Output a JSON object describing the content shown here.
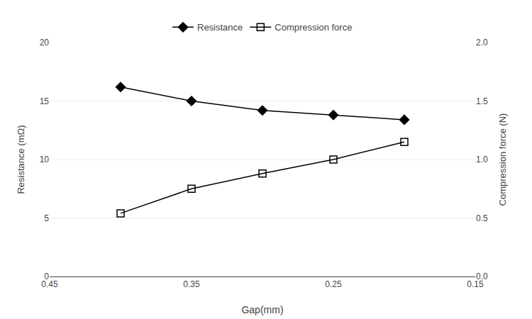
{
  "chart_data": {
    "type": "line",
    "x_label": "Gap(mm)",
    "y_label": "Resistance (mΩ)",
    "y2_label": "Compression force (N)",
    "x": [
      0.4,
      0.35,
      0.3,
      0.25,
      0.2
    ],
    "series": [
      {
        "name": "Resistance",
        "color": "#000000",
        "marker": "diamond",
        "values": [
          16.2,
          15.0,
          14.2,
          13.8,
          13.4
        ]
      },
      {
        "name": "Compression force",
        "color": "#000000",
        "marker": "square-open",
        "axis": "y2",
        "values": [
          0.54,
          0.75,
          0.88,
          1.0,
          1.15
        ]
      }
    ],
    "xlim": [
      0.45,
      0.15
    ],
    "xticks": [
      0.45,
      0.35,
      0.25,
      0.15
    ],
    "ylim": [
      0,
      20
    ],
    "yticks": [
      0,
      5,
      10,
      15,
      20
    ],
    "y2lim": [
      0.0,
      2.0
    ],
    "y2ticks": [
      {
        "value": 0.0,
        "label": "0.0"
      },
      0.5,
      {
        "value": 1.0,
        "label": "1.0"
      },
      1.5,
      {
        "value": 2.0,
        "label": "2.0"
      }
    ],
    "grid": "y",
    "legend": "top"
  }
}
